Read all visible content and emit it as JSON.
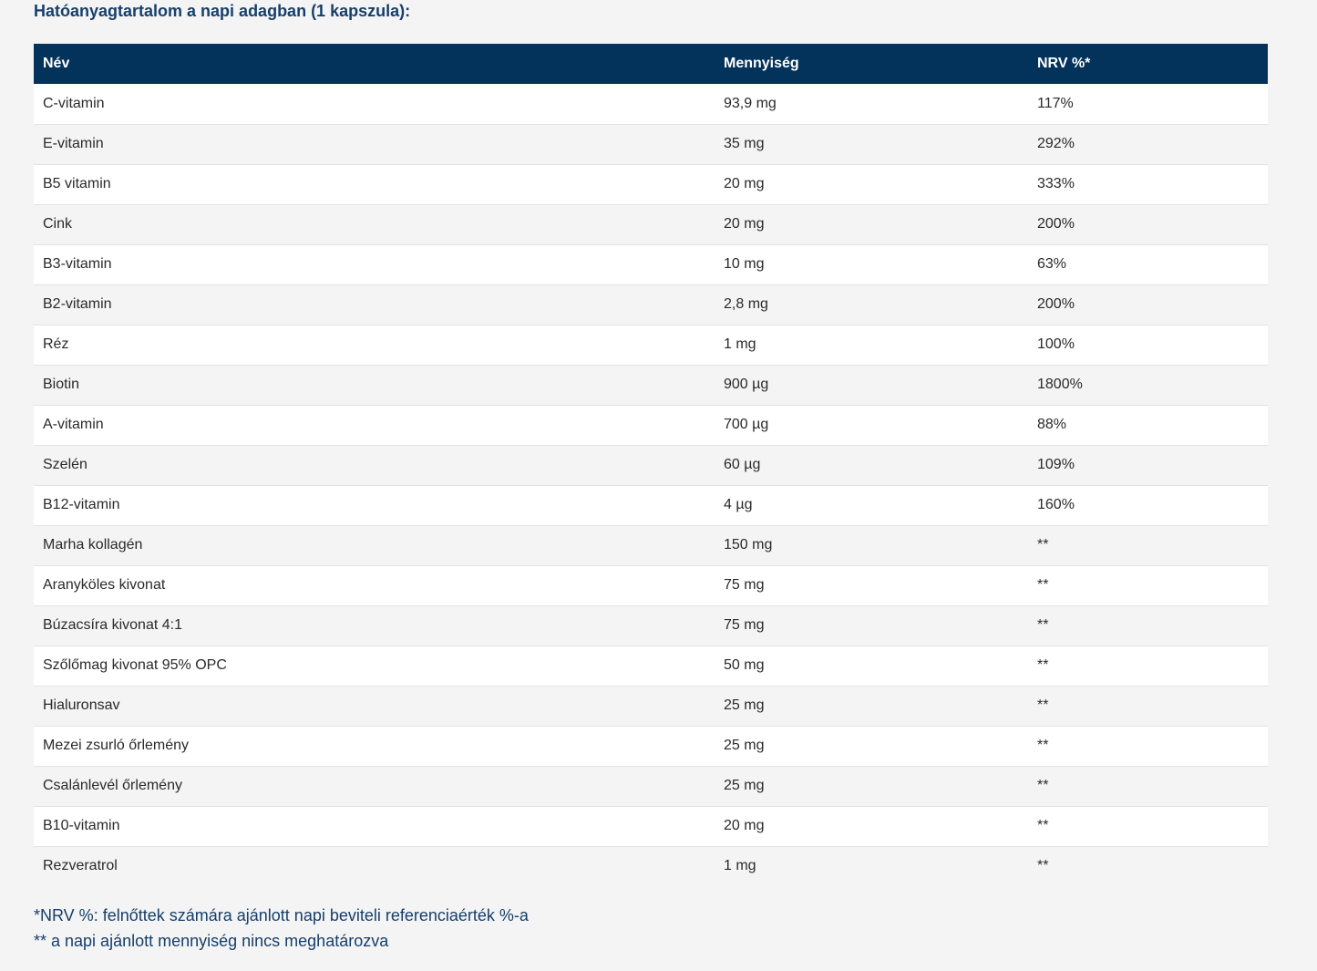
{
  "title": "Hatóanyagtartalom a napi adagban (1 kapszula):",
  "table": {
    "headers": [
      "Név",
      "Mennyiség",
      "NRV %*"
    ],
    "rows": [
      [
        "C-vitamin",
        "93,9 mg",
        "117%"
      ],
      [
        "E-vitamin",
        "35 mg",
        "292%"
      ],
      [
        "B5 vitamin",
        "20 mg",
        "333%"
      ],
      [
        "Cink",
        "20 mg",
        "200%"
      ],
      [
        "B3-vitamin",
        "10 mg",
        "63%"
      ],
      [
        "B2-vitamin",
        "2,8 mg",
        "200%"
      ],
      [
        "Réz",
        "1 mg",
        "100%"
      ],
      [
        "Biotin",
        "900 µg",
        "1800%"
      ],
      [
        "A-vitamin",
        "700 µg",
        "88%"
      ],
      [
        "Szelén",
        "60 µg",
        "109%"
      ],
      [
        "B12-vitamin",
        "4 µg",
        "160%"
      ],
      [
        "Marha kollagén",
        "150 mg",
        "**"
      ],
      [
        "Aranyköles kivonat",
        "75 mg",
        "**"
      ],
      [
        "Búzacsíra kivonat 4:1",
        "75 mg",
        "**"
      ],
      [
        "Szőlőmag kivonat 95% OPC",
        "50 mg",
        "**"
      ],
      [
        "Hialuronsav",
        "25 mg",
        "**"
      ],
      [
        "Mezei zsurló őrlemény",
        "25 mg",
        "**"
      ],
      [
        "Csalánlevél őrlemény",
        "25 mg",
        "**"
      ],
      [
        "B10-vitamin",
        "20 mg",
        "**"
      ],
      [
        "Rezveratrol",
        "1 mg",
        "**"
      ]
    ]
  },
  "footnotes": [
    "*NRV %: felnőttek számára ajánlott napi beviteli referenciaérték %-a",
    "** a napi ajánlott mennyiség nincs meghatározva"
  ]
}
